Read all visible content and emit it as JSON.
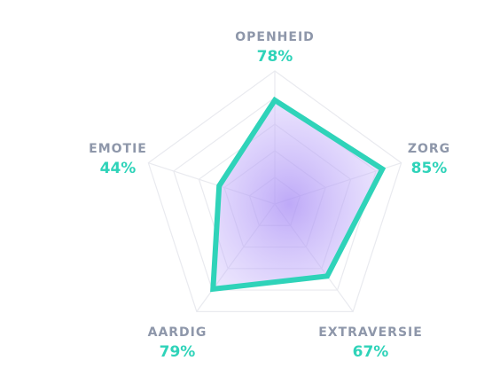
{
  "chart_data": {
    "type": "radar",
    "categories": [
      "OPENHEID",
      "ZORG",
      "EXTRAVERSIE",
      "AARDIG",
      "EMOTIE"
    ],
    "values": [
      78,
      85,
      67,
      79,
      44
    ],
    "value_labels": [
      "78%",
      "85%",
      "67%",
      "79%",
      "44%"
    ],
    "rlim": [
      0,
      100
    ],
    "rticks": [
      20,
      40,
      60,
      80,
      100
    ],
    "grid": true,
    "color": "#2fd3b9"
  }
}
